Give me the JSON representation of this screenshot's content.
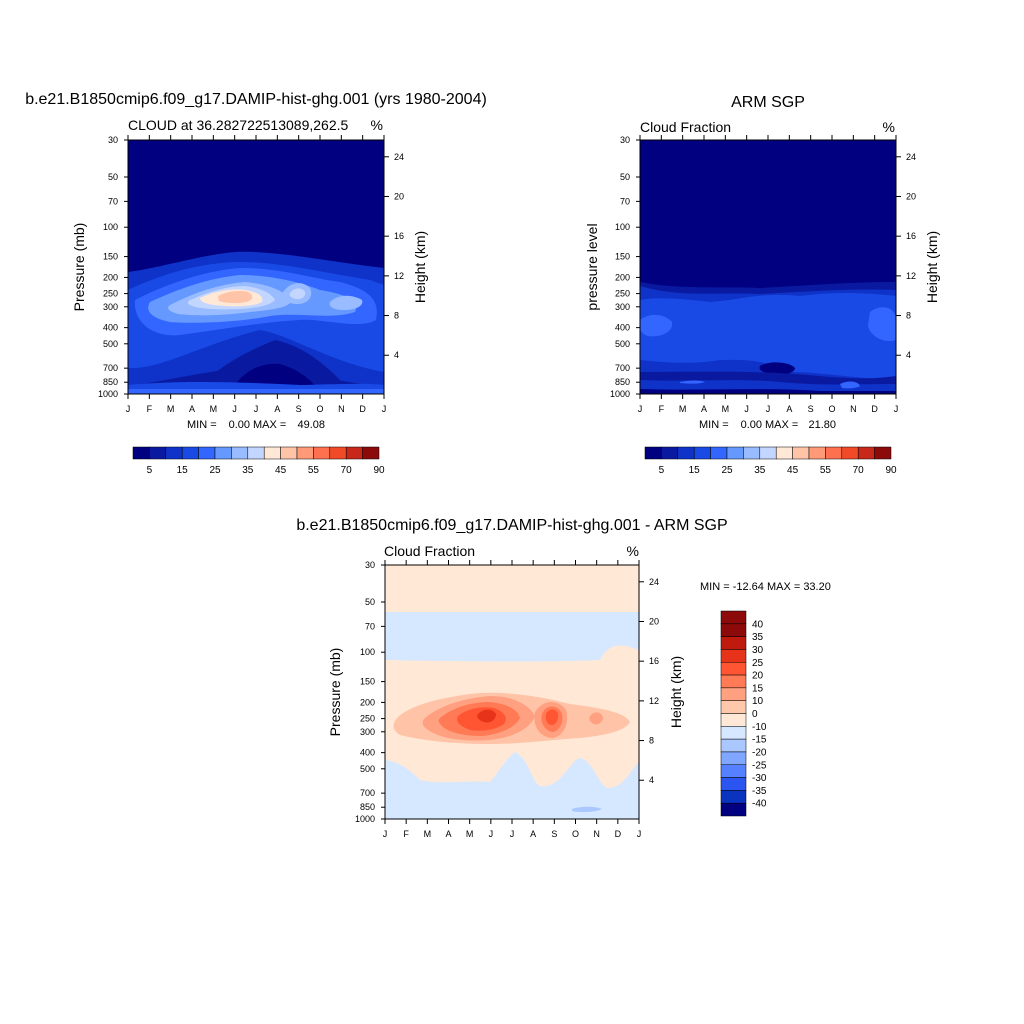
{
  "chart_data": [
    {
      "type": "heatmap",
      "title": "b.e21.B1850cmip6.f09_g17.DAMIP-hist-ghg.001 (yrs 1980-2004)",
      "left_label": "CLOUD at 36.282722513089,262.5",
      "units": "%",
      "ylabel": "Pressure (mb)",
      "ylabel_right": "Height (km)",
      "x": [
        "J",
        "F",
        "M",
        "A",
        "M",
        "J",
        "J",
        "A",
        "S",
        "O",
        "N",
        "D",
        "J"
      ],
      "y_ticks": [
        "30",
        "50",
        "70",
        "100",
        "150",
        "200",
        "250",
        "300",
        "400",
        "500",
        "700",
        "850",
        "1000"
      ],
      "y_right_ticks": [
        "24",
        "20",
        "16",
        "12",
        "8",
        "4"
      ],
      "min_label": "MIN =",
      "min_value": "0.00",
      "max_label": "MAX =",
      "max_value": "49.08",
      "colorbar_labels": [
        "5",
        "15",
        "25",
        "35",
        "45",
        "55",
        "70",
        "90"
      ]
    },
    {
      "type": "heatmap",
      "title": "ARM SGP",
      "left_label": "Cloud Fraction",
      "units": "%",
      "ylabel": "pressure level",
      "ylabel_right": "Height (km)",
      "x": [
        "J",
        "F",
        "M",
        "A",
        "M",
        "J",
        "J",
        "A",
        "S",
        "O",
        "N",
        "D",
        "J"
      ],
      "y_ticks": [
        "30",
        "50",
        "70",
        "100",
        "150",
        "200",
        "250",
        "300",
        "400",
        "500",
        "700",
        "850",
        "1000"
      ],
      "y_right_ticks": [
        "24",
        "20",
        "16",
        "12",
        "8",
        "4"
      ],
      "min_label": "MIN =",
      "min_value": "0.00",
      "max_label": "MAX =",
      "max_value": "21.80",
      "colorbar_labels": [
        "5",
        "15",
        "25",
        "35",
        "45",
        "55",
        "70",
        "90"
      ]
    },
    {
      "type": "heatmap",
      "title": "b.e21.B1850cmip6.f09_g17.DAMIP-hist-ghg.001 - ARM SGP",
      "left_label": "Cloud Fraction",
      "units": "%",
      "ylabel": "Pressure (mb)",
      "ylabel_right": "Height (km)",
      "x": [
        "J",
        "F",
        "M",
        "A",
        "M",
        "J",
        "J",
        "A",
        "S",
        "O",
        "N",
        "D",
        "J"
      ],
      "y_ticks": [
        "30",
        "50",
        "70",
        "100",
        "150",
        "200",
        "250",
        "300",
        "400",
        "500",
        "700",
        "850",
        "1000"
      ],
      "y_right_ticks": [
        "24",
        "20",
        "16",
        "12",
        "8",
        "4"
      ],
      "minmax_text": "MIN = -12.64 MAX =  33.20",
      "colorbar_labels": [
        "40",
        "35",
        "30",
        "25",
        "20",
        "15",
        "10",
        "0",
        "-10",
        "-15",
        "-20",
        "-25",
        "-30",
        "-35",
        "-40"
      ]
    }
  ],
  "colors": {
    "seq": [
      "#000080",
      "#0a1aa0",
      "#0f33c8",
      "#1a4ae6",
      "#3366ff",
      "#6699ff",
      "#99bbff",
      "#c2d6ff",
      "#ffe8d6",
      "#ffc4a8",
      "#ff9a78",
      "#ff7050",
      "#f04a28",
      "#c8281a",
      "#8c0a0a"
    ],
    "diff": [
      "#8c0a0a",
      "#c01a0f",
      "#e6331a",
      "#ff5533",
      "#ff7a55",
      "#ffa080",
      "#ffc8aa",
      "#ffe8d6",
      "#d6e8ff",
      "#aac8ff",
      "#80a6ff",
      "#5580ff",
      "#2a55f0",
      "#0a33c0",
      "#000080"
    ]
  }
}
